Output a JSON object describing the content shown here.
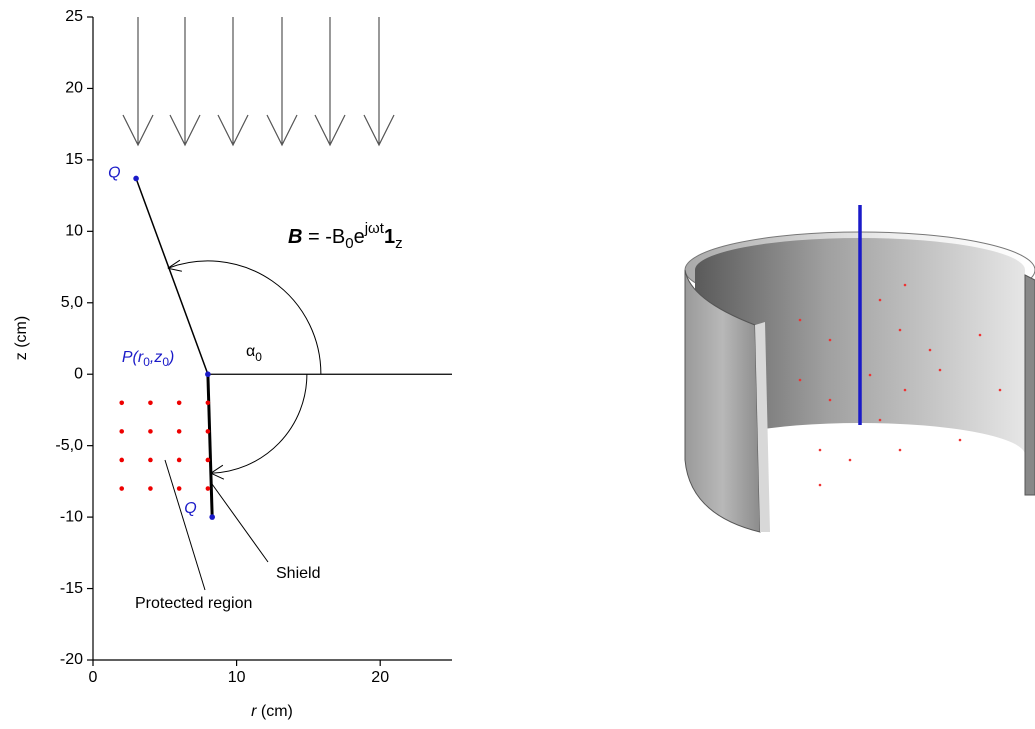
{
  "plot": {
    "xlim": [
      0,
      25
    ],
    "ylim": [
      -20,
      25
    ],
    "xticks": [
      0,
      10,
      20
    ],
    "yticks": [
      25,
      20,
      15,
      10,
      {
        "value": 5,
        "label": "5,0"
      },
      0,
      {
        "value": -5,
        "label": "-5,0"
      },
      -10,
      -15,
      -20
    ],
    "x_label": [
      "r",
      " (cm)"
    ],
    "y_label": "z (cm)",
    "points": [
      {
        "r": 3,
        "z": 13.7,
        "label": [
          "Q"
        ]
      },
      {
        "r": 8,
        "z": 0,
        "label": [
          "P(r",
          "0",
          ",z",
          "0",
          ")"
        ]
      },
      {
        "r": 8.3,
        "z": -10,
        "label": [
          "Q"
        ]
      }
    ],
    "region_r": [
      2,
      4,
      6,
      8
    ],
    "region_z": [
      -2,
      -4,
      -6,
      -8
    ],
    "angle_label": [
      "α",
      "0"
    ],
    "equation": [
      "B",
      " = -B",
      "0",
      "e",
      "jωt",
      "1",
      "z"
    ],
    "shield_label": "Shield",
    "region_label": "Protected region"
  }
}
